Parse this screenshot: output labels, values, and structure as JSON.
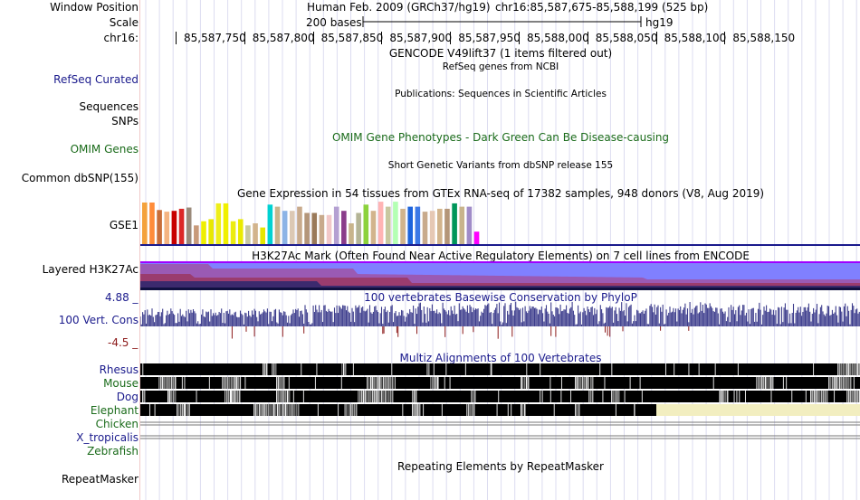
{
  "header": {
    "window_position_label": "Window Position",
    "scale_label": "Scale",
    "chrom_label": "chr16:",
    "assembly_text": "Human Feb. 2009 (GRCh37/hg19)",
    "position_text": "chr16:85,587,675-85,588,199 (525 bp)",
    "scale_text": "200 bases",
    "scale_assembly": "hg19",
    "ticks": [
      "85,587,750",
      "85,587,800",
      "85,587,850",
      "85,587,900",
      "85,587,950",
      "85,588,000",
      "85,588,050",
      "85,588,100",
      "85,588,150"
    ]
  },
  "tracks": {
    "gencode_title": "GENCODE V49lift37 (1 items filtered out)",
    "refseq_label": "RefSeq Curated",
    "refseq_title": "RefSeq genes from NCBI",
    "publications_title": "Publications: Sequences in Scientific Articles",
    "sequences_label": "Sequences",
    "snps_label": "SNPs",
    "omim_label": "OMIM Genes",
    "omim_title": "OMIM Gene Phenotypes - Dark Green Can Be Disease-causing",
    "dbsnp_title": "Short Genetic Variants from dbSNP release 155",
    "dbsnp_label": "Common dbSNP(155)",
    "gtex_title": "Gene Expression in 54 tissues from GTEx RNA-seq of 17382 samples, 948 donors (V8, Aug 2019)",
    "gtex_label": "GSE1",
    "h3k27ac_title": "H3K27Ac Mark (Often Found Near Active Regulatory Elements) on 7 cell lines from ENCODE",
    "h3k27ac_label": "Layered H3K27Ac",
    "cons_max": "4.88 _",
    "cons_min": "-4.5 _",
    "cons_label": "100 Vert. Cons",
    "cons_title": "100 vertebrates Basewise Conservation by PhyloP",
    "multiz_title": "Multiz Alignments of 100 Vertebrates",
    "species": [
      {
        "name": "Rhesus",
        "color": "#1a1a8c"
      },
      {
        "name": "Mouse",
        "color": "#1a6b1a"
      },
      {
        "name": "Dog",
        "color": "#1a1a8c"
      },
      {
        "name": "Elephant",
        "color": "#1a6b1a"
      },
      {
        "name": "Chicken",
        "color": "#1a6b1a"
      },
      {
        "name": "X_tropicalis",
        "color": "#1a1a8c"
      },
      {
        "name": "Zebrafish",
        "color": "#1a6b1a"
      }
    ],
    "repeatmasker_title": "Repeating Elements by RepeatMasker",
    "repeatmasker_label": "RepeatMasker"
  },
  "colors": {
    "track_blue": "#1a1a8c",
    "track_green": "#1a6b1a",
    "phylop": "#3c3c8c",
    "h3k27ac_top": "#8080ff",
    "elephant_gap": "#f2eec0"
  },
  "gtex_colors": [
    "#f4a23c",
    "#ff8c3a",
    "#c86e3a",
    "#f4b482",
    "#c80000",
    "#dc2828",
    "#9a8a7a",
    "#c89a7a",
    "#eeee00",
    "#e8e800",
    "#eeee1a",
    "#f0f000",
    "#ecec10",
    "#eaea00",
    "#c8c8a0",
    "#d2b48c",
    "#e6e600",
    "#00d2d2",
    "#c8b48c",
    "#8cb4e6",
    "#dcc8b4",
    "#c8aa8c",
    "#b4967a",
    "#9a7a5a",
    "#c8aa8c",
    "#f2c8c8",
    "#b4a0d2",
    "#8a3c8a",
    "#c8b48c",
    "#b4b496",
    "#8cd23c",
    "#d2b48c",
    "#ffb4b4",
    "#c8c8a0",
    "#b4ffb4",
    "#d2b48c",
    "#1e64dc",
    "#3c78e6",
    "#c8aa8c",
    "#e6c8b4",
    "#d2b48c",
    "#b49678",
    "#00965a",
    "#c8b48c",
    "#a08cc8",
    "#ff00ff"
  ],
  "gtex_values": [
    1.0,
    1.0,
    0.82,
    0.78,
    0.8,
    0.85,
    0.88,
    0.45,
    0.55,
    0.6,
    0.98,
    0.98,
    0.55,
    0.6,
    0.45,
    0.5,
    0.4,
    0.95,
    0.9,
    0.8,
    0.8,
    0.9,
    0.75,
    0.75,
    0.7,
    0.7,
    0.9,
    0.8,
    0.5,
    0.75,
    0.95,
    0.8,
    1.02,
    0.9,
    1.02,
    0.85,
    0.9,
    0.9,
    0.78,
    0.8,
    0.85,
    0.85,
    0.98,
    0.9,
    0.9,
    0.3
  ]
}
